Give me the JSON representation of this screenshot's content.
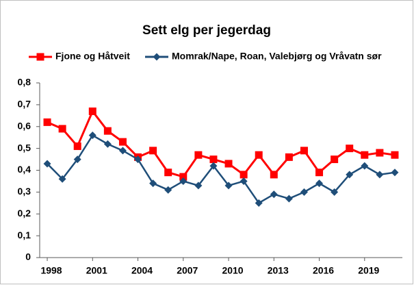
{
  "chart_data": {
    "type": "line",
    "title": "Sett elg per jegerdag",
    "x": [
      1998,
      1999,
      2000,
      2001,
      2002,
      2003,
      2004,
      2005,
      2006,
      2007,
      2008,
      2009,
      2010,
      2011,
      2012,
      2013,
      2014,
      2015,
      2016,
      2017,
      2018,
      2019,
      2020,
      2021
    ],
    "series": [
      {
        "name": "Fjone og Håtveit",
        "color": "#ff0000",
        "marker": "square",
        "values": [
          0.62,
          0.59,
          0.51,
          0.67,
          0.58,
          0.53,
          0.46,
          0.49,
          0.39,
          0.37,
          0.47,
          0.45,
          0.43,
          0.38,
          0.47,
          0.38,
          0.46,
          0.49,
          0.39,
          0.45,
          0.5,
          0.47,
          0.48,
          0.47
        ]
      },
      {
        "name": "Momrak/Nape, Roan, Valebjørg og Vråvatn sør",
        "color": "#1f4e79",
        "marker": "diamond",
        "values": [
          0.43,
          0.36,
          0.45,
          0.56,
          0.52,
          0.49,
          0.45,
          0.34,
          0.31,
          0.35,
          0.33,
          0.42,
          0.33,
          0.35,
          0.25,
          0.29,
          0.27,
          0.3,
          0.34,
          0.3,
          0.38,
          0.42,
          0.38,
          0.39
        ]
      }
    ],
    "xlim": [
      1997.5,
      2021.5
    ],
    "xticks": [
      1998,
      2001,
      2004,
      2007,
      2010,
      2013,
      2016,
      2019
    ],
    "ylim": [
      0,
      0.8
    ],
    "yticks": [
      0,
      {
        "value": 0.1,
        "label": "0,1"
      },
      {
        "value": 0.2,
        "label": "0,2"
      },
      {
        "value": 0.3,
        "label": "0,3"
      },
      {
        "value": 0.4,
        "label": "0,4"
      },
      {
        "value": 0.5,
        "label": "0,5"
      },
      {
        "value": 0.6,
        "label": "0,6"
      },
      {
        "value": 0.7,
        "label": "0,7"
      },
      {
        "value": 0.8,
        "label": "0,8"
      }
    ],
    "legend": "top"
  }
}
